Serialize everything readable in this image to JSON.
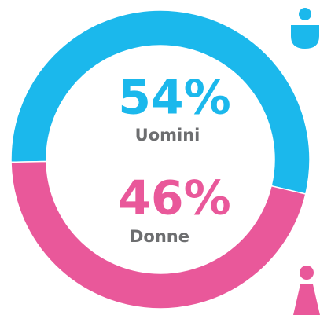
{
  "chart_data": {
    "type": "donut",
    "categories": [
      "Uomini",
      "Donne"
    ],
    "values": [
      54,
      46
    ],
    "value_labels": [
      "54%",
      "46%"
    ],
    "colors": [
      "#1bb8ec",
      "#e9589a"
    ]
  }
}
